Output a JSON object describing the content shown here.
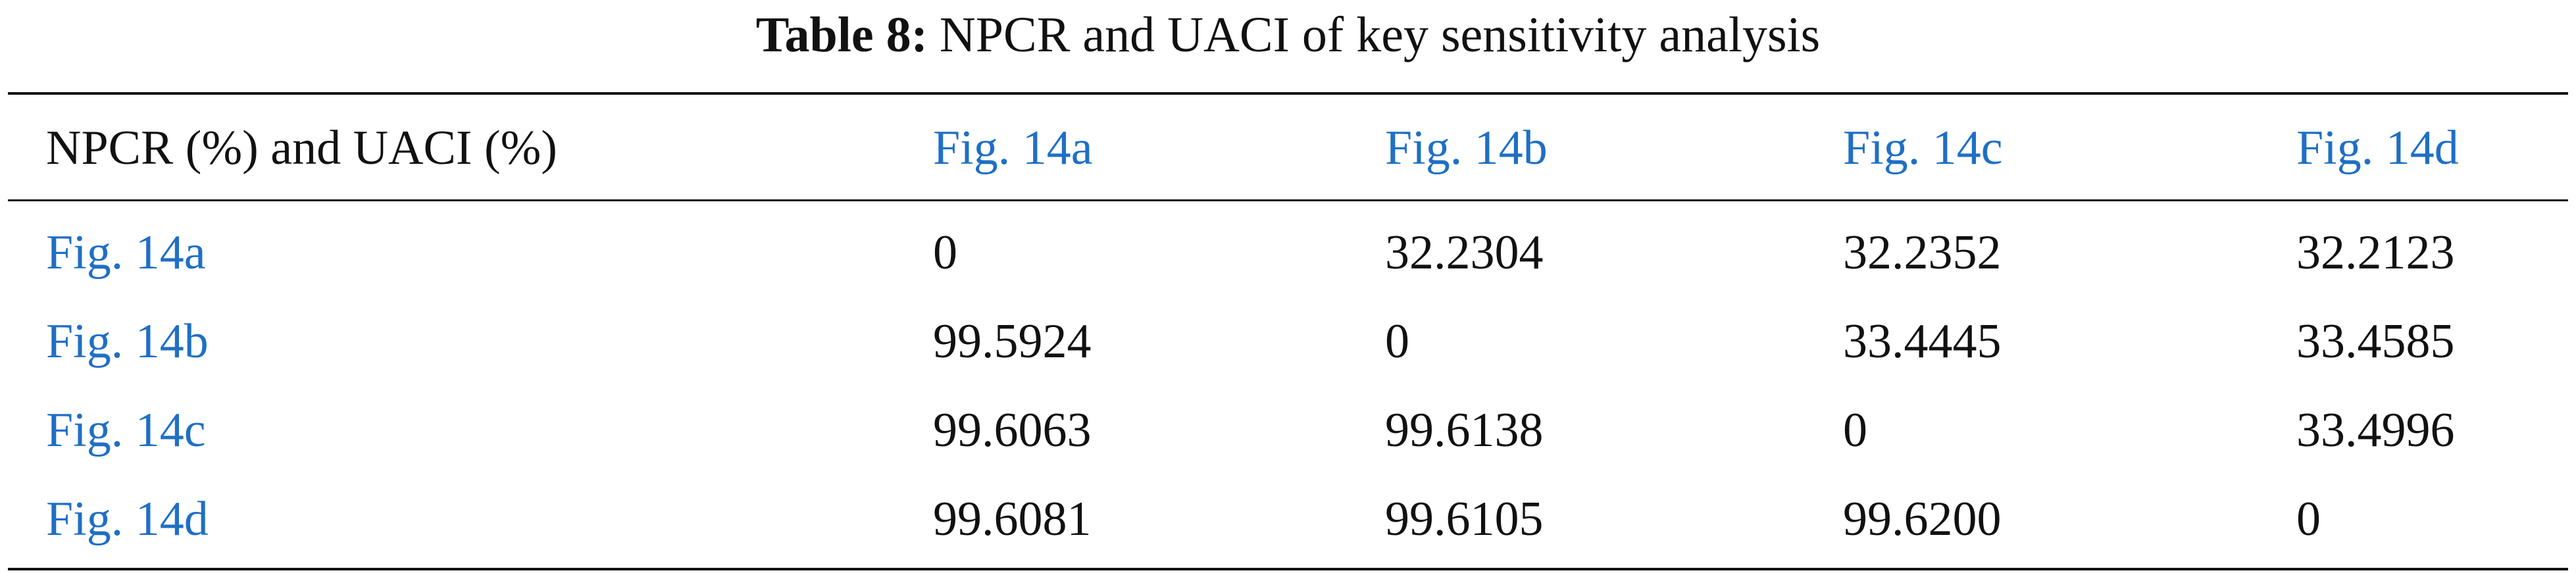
{
  "title": {
    "label": "Table 8:",
    "text": "NPCR and UACI of key sensitivity analysis"
  },
  "table": {
    "header": [
      "NPCR (%) and UACI (%)",
      "Fig. 14a",
      "Fig. 14b",
      "Fig. 14c",
      "Fig. 14d"
    ],
    "rows": [
      [
        "Fig. 14a",
        "0",
        "32.2304",
        "32.2352",
        "32.2123"
      ],
      [
        "Fig. 14b",
        "99.5924",
        "0",
        "33.4445",
        "33.4585"
      ],
      [
        "Fig. 14c",
        "99.6063",
        "99.6138",
        "0",
        "33.4996"
      ],
      [
        "Fig. 14d",
        "99.6081",
        "99.6105",
        "99.6200",
        "0"
      ]
    ]
  }
}
